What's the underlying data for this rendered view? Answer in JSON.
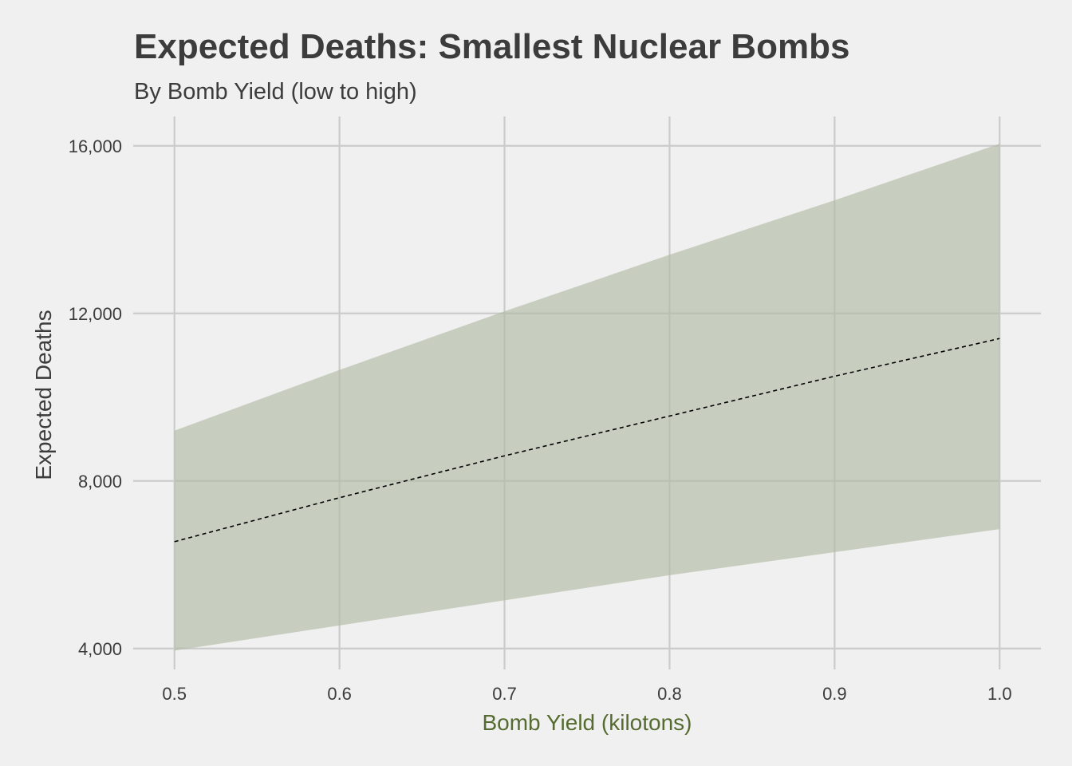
{
  "chart_data": {
    "type": "area",
    "title": "Expected Deaths: Smallest Nuclear Bombs",
    "subtitle": "By Bomb Yield (low to high)",
    "xlabel": "Bomb Yield (kilotons)",
    "ylabel": "Expected Deaths",
    "xlim": [
      0.475,
      1.025
    ],
    "ylim": [
      3500,
      16700
    ],
    "x_ticks": [
      0.5,
      0.6,
      0.7,
      0.8,
      0.9,
      1.0
    ],
    "x_tick_labels": [
      "0.5",
      "0.6",
      "0.7",
      "0.8",
      "0.9",
      "1.0"
    ],
    "y_ticks": [
      4000,
      8000,
      12000,
      16000
    ],
    "y_tick_labels": [
      "4,000",
      "8,000",
      "12,000",
      "16,000"
    ],
    "grid": true,
    "x": [
      0.5,
      0.6,
      0.7,
      0.8,
      0.9,
      1.0
    ],
    "series": [
      {
        "role": "upper",
        "values": [
          9200,
          10650,
          12050,
          13400,
          14700,
          16050
        ]
      },
      {
        "role": "lower",
        "values": [
          3950,
          4550,
          5150,
          5750,
          6300,
          6850
        ]
      },
      {
        "role": "mean",
        "values": [
          6550,
          7600,
          8600,
          9550,
          10500,
          11400
        ]
      }
    ],
    "colors": {
      "background": "#f0f0f0",
      "grid": "#cbcbcb",
      "band": "#b2bca5",
      "line": "#000000",
      "xlabel": "#556b2f",
      "text": "#3c3c3c"
    }
  }
}
